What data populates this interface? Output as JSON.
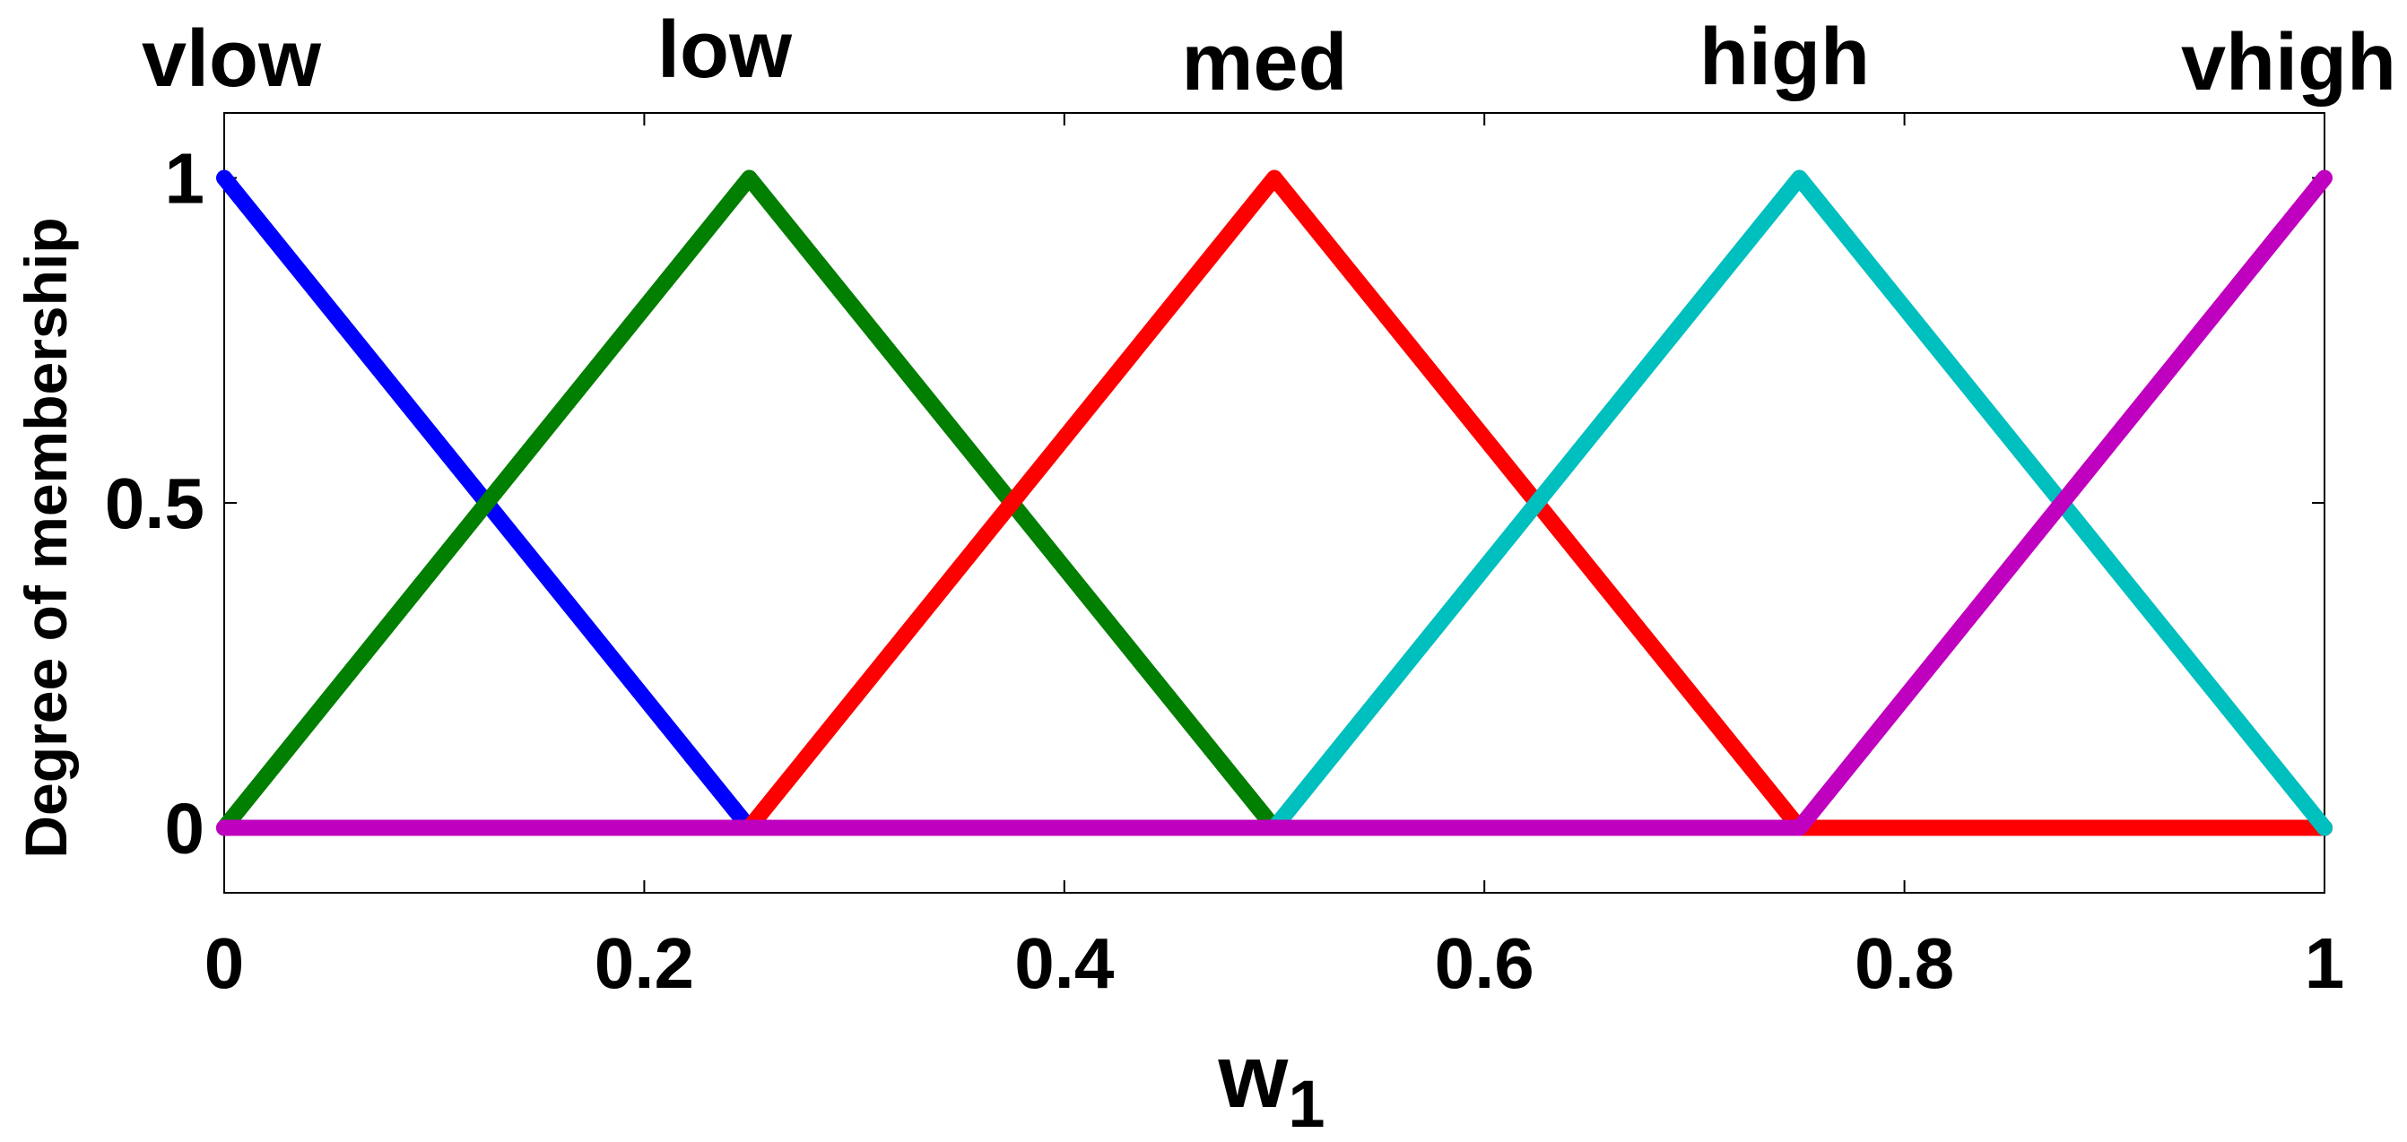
{
  "chart_data": {
    "type": "line",
    "xlabel": "w",
    "xlabel_subscript": "1",
    "ylabel": "Degree of membership",
    "xlim": [
      0,
      1
    ],
    "ylim": [
      -0.1,
      1.1
    ],
    "grid": false,
    "x_ticks": [
      0,
      0.2,
      0.4,
      0.6,
      0.8,
      1
    ],
    "x_tick_labels": [
      "0",
      "0.2",
      "0.4",
      "0.6",
      "0.8",
      "1"
    ],
    "y_ticks": [
      0,
      0.5,
      1
    ],
    "y_tick_labels": [
      "0",
      "0.5",
      "1"
    ],
    "series": [
      {
        "name": "vlow",
        "color": "#0000ff",
        "x": [
          0,
          0.25,
          1
        ],
        "y": [
          1,
          0,
          0
        ]
      },
      {
        "name": "low",
        "color": "#007f00",
        "x": [
          0,
          0.25,
          0.5,
          1
        ],
        "y": [
          0,
          1,
          0,
          0
        ]
      },
      {
        "name": "med",
        "color": "#ff0000",
        "x": [
          0,
          0.25,
          0.5,
          0.75,
          1
        ],
        "y": [
          0,
          0,
          1,
          0,
          0
        ]
      },
      {
        "name": "high",
        "color": "#00bfbf",
        "x": [
          0,
          0.5,
          0.75,
          1
        ],
        "y": [
          0,
          0,
          1,
          0
        ]
      },
      {
        "name": "vhigh",
        "color": "#bf00bf",
        "x": [
          0,
          0.75,
          1
        ],
        "y": [
          0,
          0,
          1
        ]
      }
    ]
  }
}
